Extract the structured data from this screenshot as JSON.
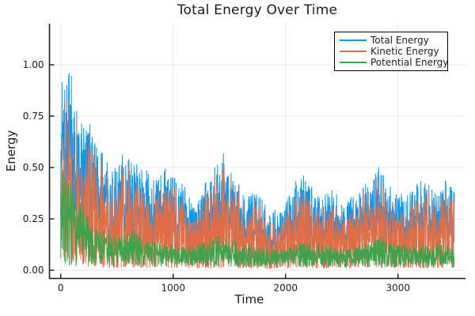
{
  "page": {
    "background": "#ffffff"
  },
  "chart_data": {
    "type": "line",
    "title": "Total Energy Over Time",
    "xlabel": "Time",
    "ylabel": "Energy",
    "xlim": [
      -100,
      3600
    ],
    "ylim": [
      -0.04,
      1.2
    ],
    "xticks": [
      0,
      1000,
      2000,
      3000
    ],
    "xtick_labels": [
      "0",
      "1000",
      "2000",
      "3000"
    ],
    "yticks": [
      0.0,
      0.25,
      0.5,
      0.75,
      1.0
    ],
    "ytick_labels": [
      "0.00",
      "0.25",
      "0.50",
      "0.75",
      "1.00"
    ],
    "grid": true,
    "grid_color": "#e9e9e9",
    "axis_color": "#1a1a1a",
    "legend": {
      "position": "top-right",
      "border_color": "#000000",
      "background": "#ffffff"
    },
    "x_points": {
      "n": 1750,
      "t_min": 0,
      "t_max": 3500
    },
    "noise_seed": 7,
    "description": "Noisy MD-style energy traces: Total starts with a spike to ~1.15 near t=20 then decays to a fluctuating 0.05-0.45 band; Kinetic = Total - Potential hugs just below Total; Potential spikes to ~0.5 early then settles to a 0.01-0.17 band.",
    "series": [
      {
        "name": "Total Energy",
        "color": "#009AFA",
        "role": "total",
        "envelope_high": [
          [
            0,
            0.5
          ],
          [
            15,
            1.18
          ],
          [
            35,
            1.0
          ],
          [
            60,
            0.95
          ],
          [
            90,
            1.02
          ],
          [
            120,
            0.8
          ],
          [
            150,
            0.78
          ],
          [
            190,
            0.75
          ],
          [
            230,
            0.7
          ],
          [
            270,
            0.73
          ],
          [
            310,
            0.65
          ],
          [
            360,
            0.58
          ],
          [
            420,
            0.52
          ],
          [
            480,
            0.5
          ],
          [
            540,
            0.55
          ],
          [
            580,
            0.62
          ],
          [
            620,
            0.55
          ],
          [
            680,
            0.52
          ],
          [
            740,
            0.48
          ],
          [
            800,
            0.5
          ],
          [
            860,
            0.46
          ],
          [
            920,
            0.5
          ],
          [
            980,
            0.46
          ],
          [
            1040,
            0.45
          ],
          [
            1100,
            0.42
          ],
          [
            1160,
            0.38
          ],
          [
            1220,
            0.36
          ],
          [
            1280,
            0.42
          ],
          [
            1340,
            0.48
          ],
          [
            1400,
            0.56
          ],
          [
            1450,
            0.58
          ],
          [
            1500,
            0.5
          ],
          [
            1560,
            0.44
          ],
          [
            1620,
            0.4
          ],
          [
            1680,
            0.36
          ],
          [
            1740,
            0.4
          ],
          [
            1800,
            0.34
          ],
          [
            1860,
            0.3
          ],
          [
            1920,
            0.32
          ],
          [
            1980,
            0.3
          ],
          [
            2040,
            0.38
          ],
          [
            2100,
            0.45
          ],
          [
            2160,
            0.46
          ],
          [
            2220,
            0.42
          ],
          [
            2280,
            0.38
          ],
          [
            2340,
            0.36
          ],
          [
            2400,
            0.42
          ],
          [
            2460,
            0.38
          ],
          [
            2520,
            0.34
          ],
          [
            2580,
            0.38
          ],
          [
            2640,
            0.36
          ],
          [
            2700,
            0.42
          ],
          [
            2760,
            0.46
          ],
          [
            2820,
            0.52
          ],
          [
            2880,
            0.46
          ],
          [
            2940,
            0.4
          ],
          [
            3000,
            0.36
          ],
          [
            3060,
            0.4
          ],
          [
            3120,
            0.38
          ],
          [
            3180,
            0.44
          ],
          [
            3240,
            0.46
          ],
          [
            3300,
            0.4
          ],
          [
            3360,
            0.36
          ],
          [
            3420,
            0.44
          ],
          [
            3500,
            0.4
          ]
        ],
        "envelope_low": [
          [
            0,
            0.25
          ],
          [
            15,
            0.55
          ],
          [
            35,
            0.3
          ],
          [
            80,
            0.2
          ],
          [
            150,
            0.18
          ],
          [
            250,
            0.15
          ],
          [
            350,
            0.1
          ],
          [
            500,
            0.08
          ],
          [
            700,
            0.07
          ],
          [
            900,
            0.08
          ],
          [
            1100,
            0.07
          ],
          [
            1300,
            0.06
          ],
          [
            1500,
            0.09
          ],
          [
            1700,
            0.06
          ],
          [
            1900,
            0.05
          ],
          [
            2100,
            0.07
          ],
          [
            2300,
            0.07
          ],
          [
            2500,
            0.06
          ],
          [
            2700,
            0.08
          ],
          [
            2900,
            0.08
          ],
          [
            3100,
            0.07
          ],
          [
            3300,
            0.07
          ],
          [
            3500,
            0.08
          ]
        ]
      },
      {
        "name": "Kinetic Energy",
        "color": "#E26E47",
        "role": "kinetic",
        "derivation": "total - potential"
      },
      {
        "name": "Potential Energy",
        "color": "#3DA44E",
        "role": "potential",
        "noise_power": 0.9,
        "envelope_high": [
          [
            0,
            0.5
          ],
          [
            40,
            0.46
          ],
          [
            90,
            0.42
          ],
          [
            140,
            0.36
          ],
          [
            200,
            0.3
          ],
          [
            260,
            0.26
          ],
          [
            320,
            0.22
          ],
          [
            400,
            0.19
          ],
          [
            500,
            0.16
          ],
          [
            600,
            0.18
          ],
          [
            650,
            0.2
          ],
          [
            720,
            0.16
          ],
          [
            820,
            0.14
          ],
          [
            950,
            0.13
          ],
          [
            1100,
            0.12
          ],
          [
            1250,
            0.13
          ],
          [
            1400,
            0.17
          ],
          [
            1500,
            0.15
          ],
          [
            1650,
            0.13
          ],
          [
            1800,
            0.11
          ],
          [
            1950,
            0.1
          ],
          [
            2100,
            0.13
          ],
          [
            2250,
            0.14
          ],
          [
            2400,
            0.12
          ],
          [
            2550,
            0.11
          ],
          [
            2700,
            0.13
          ],
          [
            2850,
            0.17
          ],
          [
            3000,
            0.13
          ],
          [
            3150,
            0.12
          ],
          [
            3300,
            0.13
          ],
          [
            3500,
            0.12
          ]
        ],
        "envelope_low": [
          [
            0,
            0.02
          ],
          [
            3500,
            0.012
          ]
        ]
      }
    ]
  }
}
